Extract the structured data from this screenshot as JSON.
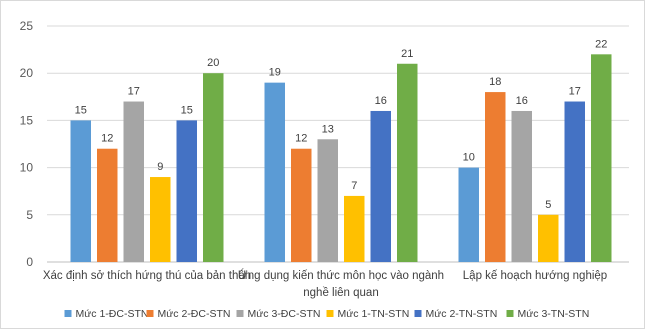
{
  "chart_data": {
    "type": "bar",
    "title": "",
    "xlabel": "",
    "ylabel": "",
    "ylim": [
      0,
      25
    ],
    "yticks": [
      0,
      5,
      10,
      15,
      20,
      25
    ],
    "grid": true,
    "legend_position": "bottom",
    "categories": [
      [
        "Xác định sở thích hứng thú của bản thân"
      ],
      [
        "Ứng dụng kiến thức môn học vào ngành",
        "nghề liên quan"
      ],
      [
        "Lập kế hoạch hướng nghiệp"
      ]
    ],
    "series": [
      {
        "name": "Mức 1-ĐC-STN",
        "color": "#5b9bd5",
        "values": [
          15,
          19,
          10
        ]
      },
      {
        "name": "Mức 2-ĐC-STN",
        "color": "#ed7d31",
        "values": [
          12,
          12,
          18
        ]
      },
      {
        "name": "Mức 3-ĐC-STN",
        "color": "#a5a5a5",
        "values": [
          17,
          13,
          16
        ]
      },
      {
        "name": "Mức 1-TN-STN",
        "color": "#ffc000",
        "values": [
          9,
          7,
          5
        ]
      },
      {
        "name": "Mức  2-TN-STN",
        "color": "#4472c4",
        "values": [
          15,
          16,
          17
        ]
      },
      {
        "name": "Mức 3-TN-STN",
        "color": "#70ad47",
        "values": [
          20,
          21,
          22
        ]
      }
    ]
  }
}
